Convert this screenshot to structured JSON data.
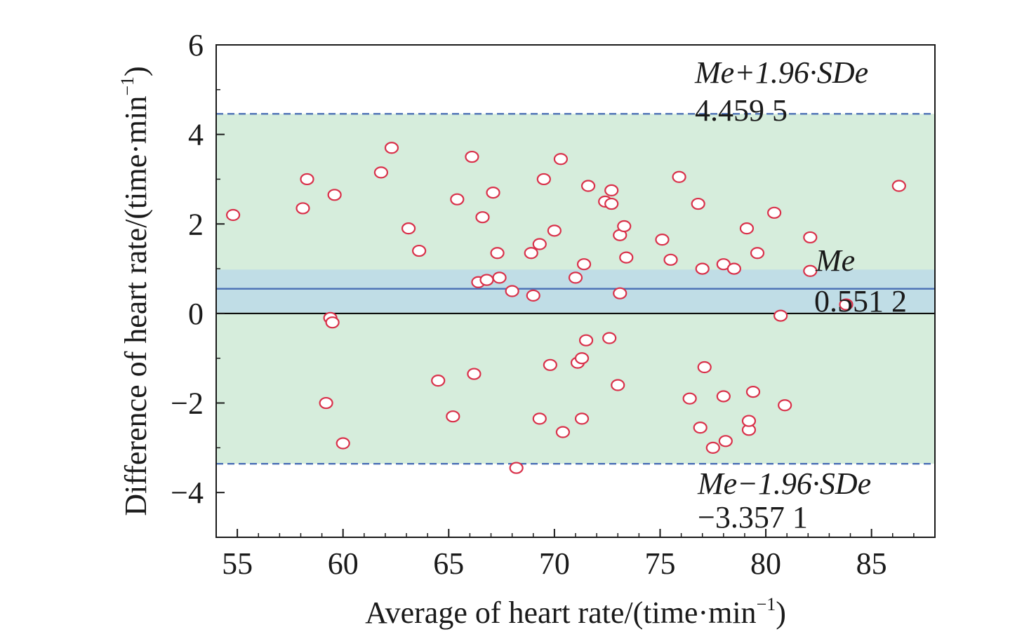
{
  "chart_data": {
    "type": "scatter",
    "xlabel": "Average of heart rate/(time·min",
    "xlabel_sup": "−1",
    "xlabel_end": ")",
    "ylabel": "Difference of heart rate/(time·min",
    "ylabel_sup": "−1",
    "ylabel_end": ")",
    "xlim": [
      54,
      88
    ],
    "ylim": [
      -5,
      6
    ],
    "x_ticks": [
      55,
      60,
      65,
      70,
      75,
      80,
      85
    ],
    "y_ticks": [
      -4,
      -2,
      0,
      2,
      4,
      6
    ],
    "y_tick_labels": [
      "−4",
      "−2",
      "0",
      "2",
      "4",
      "6"
    ],
    "grid": false,
    "reference_lines": {
      "upper": {
        "label": "Me+1.96·SDe",
        "value_text": "4.459 5",
        "value": 4.4595,
        "style": "dashed",
        "color": "#4a6fb5"
      },
      "mean": {
        "label": "Me",
        "value_text": "0.551 2",
        "value": 0.5512,
        "style": "solid",
        "color": "#4a6fb5"
      },
      "lower": {
        "label": "Me−1.96·SDe",
        "value_text": "−3.357 1",
        "value": -3.3571,
        "style": "dashed",
        "color": "#4a6fb5"
      },
      "zero": {
        "value": 0,
        "color": "#000000"
      }
    },
    "bands": [
      {
        "from": -3.3571,
        "to": 4.4595,
        "color": "#d6eddc"
      },
      {
        "from": 0.02,
        "to": 0.98,
        "color": "#c0dde6"
      }
    ],
    "points": [
      [
        54.8,
        2.2
      ],
      [
        58.1,
        2.35
      ],
      [
        58.3,
        3.0
      ],
      [
        59.6,
        2.65
      ],
      [
        59.2,
        -2.0
      ],
      [
        59.4,
        -0.1
      ],
      [
        59.5,
        -0.2
      ],
      [
        60.0,
        -2.9
      ],
      [
        61.8,
        3.15
      ],
      [
        62.3,
        3.7
      ],
      [
        63.1,
        1.9
      ],
      [
        63.6,
        1.4
      ],
      [
        64.5,
        -1.5
      ],
      [
        65.2,
        -2.3
      ],
      [
        65.4,
        2.55
      ],
      [
        66.1,
        3.5
      ],
      [
        66.2,
        -1.35
      ],
      [
        66.4,
        0.7
      ],
      [
        66.6,
        2.15
      ],
      [
        66.8,
        0.75
      ],
      [
        67.1,
        2.7
      ],
      [
        67.3,
        1.35
      ],
      [
        67.4,
        0.8
      ],
      [
        68.0,
        0.5
      ],
      [
        68.2,
        -3.45
      ],
      [
        68.9,
        1.35
      ],
      [
        69.0,
        0.4
      ],
      [
        69.3,
        -2.35
      ],
      [
        69.3,
        1.55
      ],
      [
        69.5,
        3.0
      ],
      [
        69.8,
        -1.15
      ],
      [
        70.0,
        1.85
      ],
      [
        70.3,
        3.45
      ],
      [
        70.4,
        -2.65
      ],
      [
        71.0,
        0.8
      ],
      [
        71.1,
        -1.1
      ],
      [
        71.3,
        -1.0
      ],
      [
        71.3,
        -2.35
      ],
      [
        71.4,
        1.1
      ],
      [
        71.5,
        -0.6
      ],
      [
        71.6,
        2.85
      ],
      [
        72.4,
        2.5
      ],
      [
        72.6,
        -0.55
      ],
      [
        72.7,
        2.75
      ],
      [
        72.7,
        2.45
      ],
      [
        73.0,
        -1.6
      ],
      [
        73.1,
        1.75
      ],
      [
        73.1,
        0.45
      ],
      [
        73.3,
        1.95
      ],
      [
        73.4,
        1.25
      ],
      [
        75.1,
        1.65
      ],
      [
        75.5,
        1.2
      ],
      [
        75.9,
        3.05
      ],
      [
        76.4,
        -1.9
      ],
      [
        76.8,
        2.45
      ],
      [
        76.9,
        -2.55
      ],
      [
        77.0,
        1.0
      ],
      [
        77.1,
        -1.2
      ],
      [
        77.5,
        -3.0
      ],
      [
        78.0,
        -1.85
      ],
      [
        78.0,
        1.1
      ],
      [
        78.1,
        -2.85
      ],
      [
        78.5,
        1.0
      ],
      [
        79.1,
        1.9
      ],
      [
        79.2,
        -2.6
      ],
      [
        79.2,
        -2.4
      ],
      [
        79.4,
        -1.75
      ],
      [
        79.6,
        1.35
      ],
      [
        80.4,
        2.25
      ],
      [
        80.7,
        -0.05
      ],
      [
        80.9,
        -2.05
      ],
      [
        82.1,
        1.7
      ],
      [
        82.1,
        0.95
      ],
      [
        83.8,
        0.2
      ],
      [
        86.3,
        2.85
      ]
    ]
  }
}
